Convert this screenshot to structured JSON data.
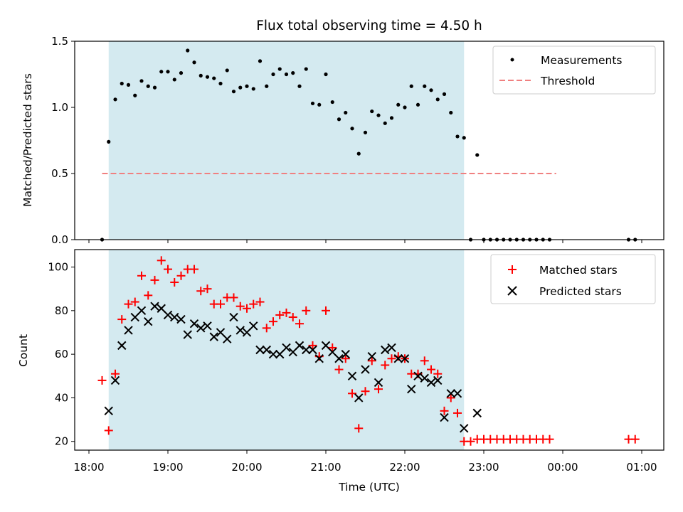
{
  "chart_data": [
    {
      "type": "scatter",
      "title": "Flux total observing time = 4.50 h",
      "ylabel": "Matched/Predicted stars",
      "ylim": [
        0,
        1.5
      ],
      "yticks": [
        "0.0",
        "0.5",
        "1.0",
        "1.5"
      ],
      "highlight_span": [
        "18:15",
        "22:45"
      ],
      "highlight_color": "#d4eaf0",
      "legend": {
        "placement": "upper right",
        "entries": [
          "Measurements",
          "Threshold"
        ]
      },
      "threshold": {
        "name": "Threshold",
        "value": 0.5,
        "x_range": [
          "18:10",
          "23:55"
        ],
        "color": "#f08080",
        "style": "dashed"
      },
      "series": [
        {
          "name": "Measurements",
          "marker": "dot",
          "color": "#000000",
          "points": [
            [
              "18:10",
              0.0
            ],
            [
              "18:15",
              0.74
            ],
            [
              "18:20",
              1.06
            ],
            [
              "18:25",
              1.18
            ],
            [
              "18:30",
              1.17
            ],
            [
              "18:35",
              1.09
            ],
            [
              "18:40",
              1.2
            ],
            [
              "18:45",
              1.16
            ],
            [
              "18:50",
              1.15
            ],
            [
              "18:55",
              1.27
            ],
            [
              "19:00",
              1.27
            ],
            [
              "19:05",
              1.21
            ],
            [
              "19:10",
              1.26
            ],
            [
              "19:15",
              1.43
            ],
            [
              "19:20",
              1.34
            ],
            [
              "19:25",
              1.24
            ],
            [
              "19:30",
              1.23
            ],
            [
              "19:35",
              1.22
            ],
            [
              "19:40",
              1.18
            ],
            [
              "19:45",
              1.28
            ],
            [
              "19:50",
              1.12
            ],
            [
              "19:55",
              1.15
            ],
            [
              "20:00",
              1.16
            ],
            [
              "20:05",
              1.14
            ],
            [
              "20:10",
              1.35
            ],
            [
              "20:15",
              1.16
            ],
            [
              "20:20",
              1.25
            ],
            [
              "20:25",
              1.29
            ],
            [
              "20:30",
              1.25
            ],
            [
              "20:35",
              1.26
            ],
            [
              "20:40",
              1.16
            ],
            [
              "20:45",
              1.29
            ],
            [
              "20:50",
              1.03
            ],
            [
              "20:55",
              1.02
            ],
            [
              "21:00",
              1.25
            ],
            [
              "21:05",
              1.04
            ],
            [
              "21:10",
              0.91
            ],
            [
              "21:15",
              0.96
            ],
            [
              "21:20",
              0.84
            ],
            [
              "21:25",
              0.65
            ],
            [
              "21:30",
              0.81
            ],
            [
              "21:35",
              0.97
            ],
            [
              "21:40",
              0.94
            ],
            [
              "21:45",
              0.88
            ],
            [
              "21:50",
              0.92
            ],
            [
              "21:55",
              1.02
            ],
            [
              "22:00",
              1.0
            ],
            [
              "22:05",
              1.16
            ],
            [
              "22:10",
              1.02
            ],
            [
              "22:15",
              1.16
            ],
            [
              "22:20",
              1.13
            ],
            [
              "22:25",
              1.06
            ],
            [
              "22:30",
              1.1
            ],
            [
              "22:35",
              0.96
            ],
            [
              "22:40",
              0.78
            ],
            [
              "22:45",
              0.77
            ],
            [
              "22:50",
              0.0
            ],
            [
              "22:55",
              0.64
            ],
            [
              "23:00",
              0.0
            ],
            [
              "23:05",
              0.0
            ],
            [
              "23:10",
              0.0
            ],
            [
              "23:15",
              0.0
            ],
            [
              "23:20",
              0.0
            ],
            [
              "23:25",
              0.0
            ],
            [
              "23:30",
              0.0
            ],
            [
              "23:35",
              0.0
            ],
            [
              "23:40",
              0.0
            ],
            [
              "23:45",
              0.0
            ],
            [
              "23:50",
              0.0
            ],
            [
              "00:50",
              0.0
            ],
            [
              "00:55",
              0.0
            ]
          ]
        }
      ]
    },
    {
      "type": "scatter",
      "ylabel": "Count",
      "xlabel": "Time (UTC)",
      "ylim": [
        16,
        108
      ],
      "yticks": [
        "20",
        "40",
        "60",
        "80",
        "100"
      ],
      "xlim": [
        "17:50",
        "01:10"
      ],
      "xticks": [
        "18:00",
        "19:00",
        "20:00",
        "21:00",
        "22:00",
        "23:00",
        "00:00",
        "01:00"
      ],
      "highlight_span": [
        "18:15",
        "22:45"
      ],
      "highlight_color": "#d4eaf0",
      "legend": {
        "placement": "upper right",
        "entries": [
          "Matched stars",
          "Predicted stars"
        ]
      },
      "series": [
        {
          "name": "Matched stars",
          "marker": "plus",
          "color": "#ff0000",
          "points": [
            [
              "18:10",
              48
            ],
            [
              "18:15",
              25
            ],
            [
              "18:20",
              51
            ],
            [
              "18:25",
              76
            ],
            [
              "18:30",
              83
            ],
            [
              "18:35",
              84
            ],
            [
              "18:40",
              96
            ],
            [
              "18:45",
              87
            ],
            [
              "18:50",
              94
            ],
            [
              "18:55",
              103
            ],
            [
              "19:00",
              99
            ],
            [
              "19:05",
              93
            ],
            [
              "19:10",
              96
            ],
            [
              "19:15",
              99
            ],
            [
              "19:20",
              99
            ],
            [
              "19:25",
              89
            ],
            [
              "19:30",
              90
            ],
            [
              "19:35",
              83
            ],
            [
              "19:40",
              83
            ],
            [
              "19:45",
              86
            ],
            [
              "19:50",
              86
            ],
            [
              "19:55",
              82
            ],
            [
              "20:00",
              81
            ],
            [
              "20:05",
              83
            ],
            [
              "20:10",
              84
            ],
            [
              "20:15",
              72
            ],
            [
              "20:20",
              75
            ],
            [
              "20:25",
              78
            ],
            [
              "20:30",
              79
            ],
            [
              "20:35",
              77
            ],
            [
              "20:40",
              74
            ],
            [
              "20:45",
              80
            ],
            [
              "20:50",
              64
            ],
            [
              "20:55",
              59
            ],
            [
              "21:00",
              80
            ],
            [
              "21:05",
              63
            ],
            [
              "21:10",
              53
            ],
            [
              "21:15",
              58
            ],
            [
              "21:20",
              42
            ],
            [
              "21:25",
              26
            ],
            [
              "21:30",
              43
            ],
            [
              "21:35",
              57
            ],
            [
              "21:40",
              44
            ],
            [
              "21:45",
              55
            ],
            [
              "21:50",
              58
            ],
            [
              "21:55",
              59
            ],
            [
              "22:00",
              58
            ],
            [
              "22:05",
              51
            ],
            [
              "22:10",
              51
            ],
            [
              "22:15",
              57
            ],
            [
              "22:20",
              53
            ],
            [
              "22:25",
              51
            ],
            [
              "22:30",
              34
            ],
            [
              "22:35",
              40
            ],
            [
              "22:40",
              33
            ],
            [
              "22:45",
              20
            ],
            [
              "22:50",
              20
            ],
            [
              "22:55",
              21
            ],
            [
              "23:00",
              21
            ],
            [
              "23:05",
              21
            ],
            [
              "23:10",
              21
            ],
            [
              "23:15",
              21
            ],
            [
              "23:20",
              21
            ],
            [
              "23:25",
              21
            ],
            [
              "23:30",
              21
            ],
            [
              "23:35",
              21
            ],
            [
              "23:40",
              21
            ],
            [
              "23:45",
              21
            ],
            [
              "23:50",
              21
            ],
            [
              "00:50",
              21
            ],
            [
              "00:55",
              21
            ]
          ]
        },
        {
          "name": "Predicted stars",
          "marker": "x",
          "color": "#000000",
          "points": [
            [
              "18:15",
              34
            ],
            [
              "18:20",
              48
            ],
            [
              "18:25",
              64
            ],
            [
              "18:30",
              71
            ],
            [
              "18:35",
              77
            ],
            [
              "18:40",
              80
            ],
            [
              "18:45",
              75
            ],
            [
              "18:50",
              82
            ],
            [
              "18:55",
              81
            ],
            [
              "19:00",
              78
            ],
            [
              "19:05",
              77
            ],
            [
              "19:10",
              76
            ],
            [
              "19:15",
              69
            ],
            [
              "19:20",
              74
            ],
            [
              "19:25",
              72
            ],
            [
              "19:30",
              73
            ],
            [
              "19:35",
              68
            ],
            [
              "19:40",
              70
            ],
            [
              "19:45",
              67
            ],
            [
              "19:50",
              77
            ],
            [
              "19:55",
              71
            ],
            [
              "20:00",
              70
            ],
            [
              "20:05",
              73
            ],
            [
              "20:10",
              62
            ],
            [
              "20:15",
              62
            ],
            [
              "20:20",
              60
            ],
            [
              "20:25",
              60
            ],
            [
              "20:30",
              63
            ],
            [
              "20:35",
              61
            ],
            [
              "20:40",
              64
            ],
            [
              "20:45",
              62
            ],
            [
              "20:50",
              62
            ],
            [
              "20:55",
              58
            ],
            [
              "21:00",
              64
            ],
            [
              "21:05",
              61
            ],
            [
              "21:10",
              58
            ],
            [
              "21:15",
              60
            ],
            [
              "21:20",
              50
            ],
            [
              "21:25",
              40
            ],
            [
              "21:30",
              53
            ],
            [
              "21:35",
              59
            ],
            [
              "21:40",
              47
            ],
            [
              "21:45",
              62
            ],
            [
              "21:50",
              63
            ],
            [
              "21:55",
              58
            ],
            [
              "22:00",
              58
            ],
            [
              "22:05",
              44
            ],
            [
              "22:10",
              50
            ],
            [
              "22:15",
              49
            ],
            [
              "22:20",
              47
            ],
            [
              "22:25",
              48
            ],
            [
              "22:30",
              31
            ],
            [
              "22:35",
              42
            ],
            [
              "22:40",
              42
            ],
            [
              "22:45",
              26
            ],
            [
              "22:55",
              33
            ]
          ]
        }
      ]
    }
  ]
}
